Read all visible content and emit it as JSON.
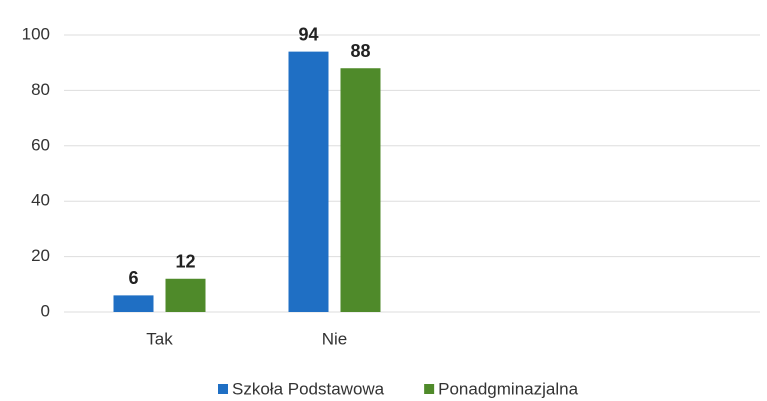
{
  "chart_data": {
    "type": "bar",
    "categories": [
      "Tak",
      "Nie"
    ],
    "series": [
      {
        "name": "Szkoła Podstawowa",
        "color": "#1f6fc4",
        "values": [
          6,
          94
        ]
      },
      {
        "name": "Ponadgminazjalna",
        "color": "#4f8a2a",
        "values": [
          12,
          88
        ]
      }
    ],
    "ylim": [
      0,
      100
    ],
    "yticks": [
      0,
      20,
      40,
      60,
      80,
      100
    ],
    "grid": true,
    "legend": "bottom"
  }
}
